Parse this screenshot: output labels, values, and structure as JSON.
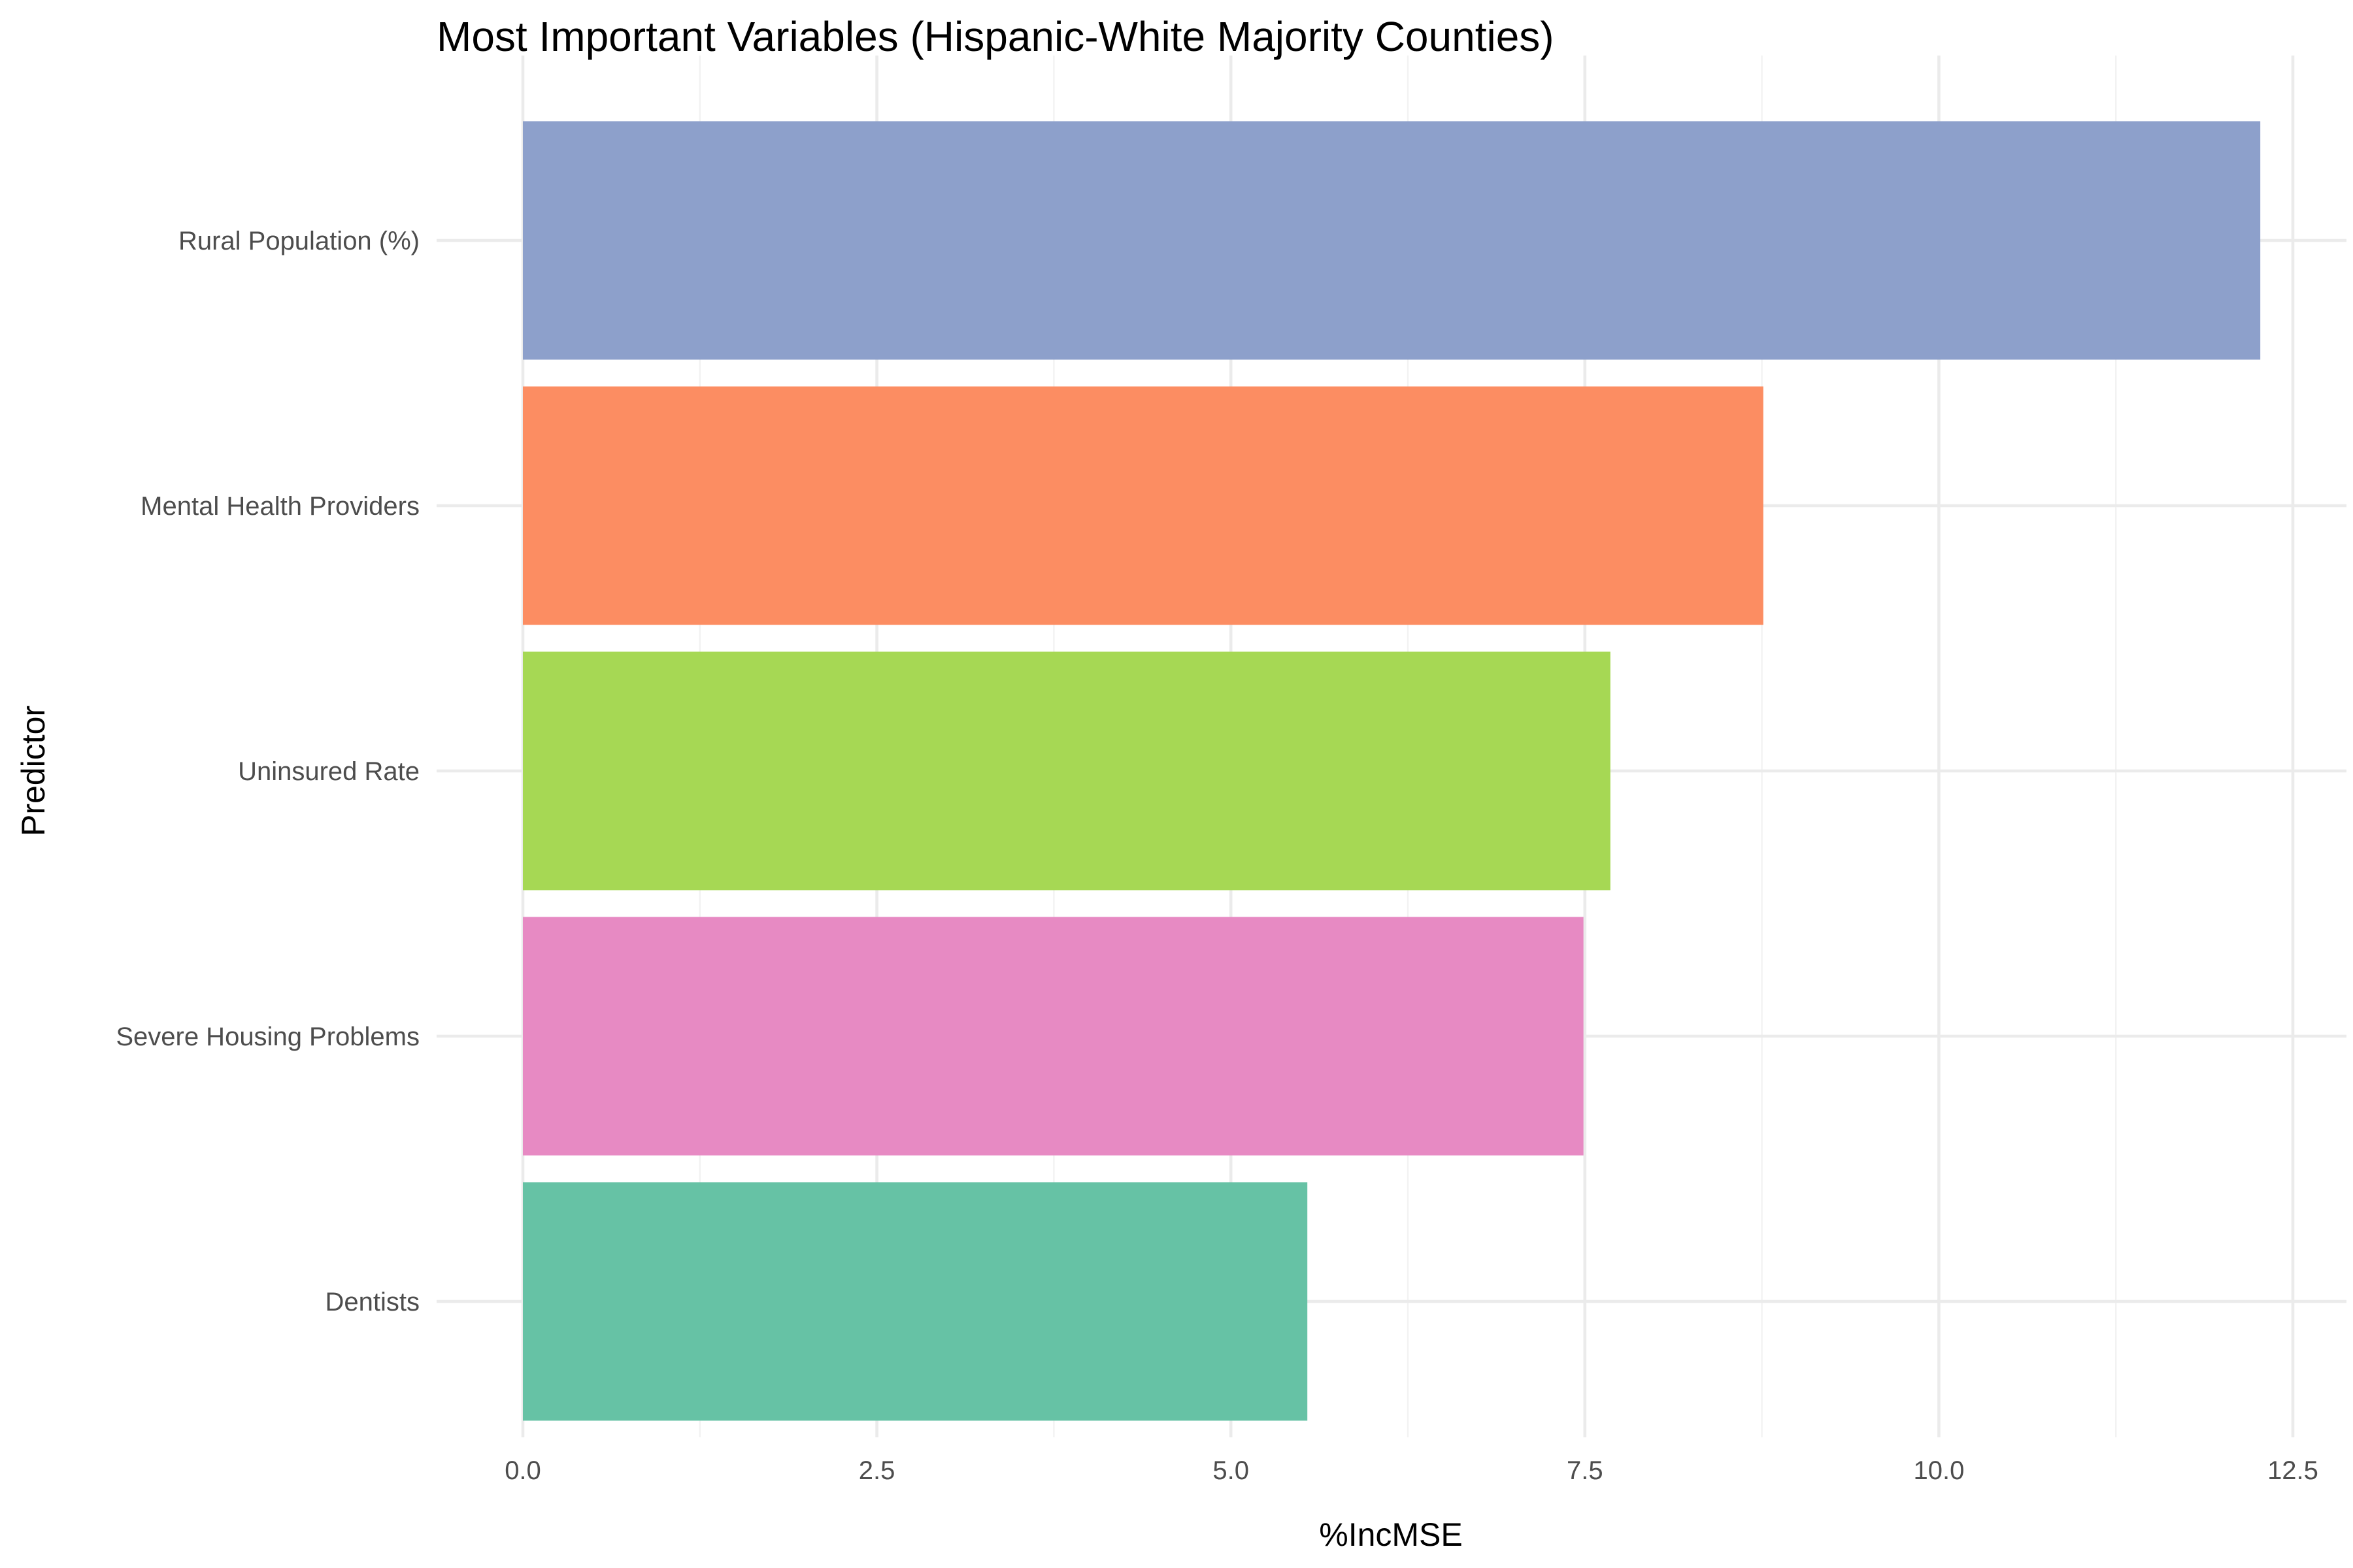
{
  "chart_data": {
    "type": "bar",
    "orientation": "horizontal",
    "title": "Most Important Variables (Hispanic-White Majority Counties)",
    "xlabel": "%IncMSE",
    "ylabel": "Predictor",
    "xlim": [
      0,
      12.8
    ],
    "xticks": [
      0,
      2.5,
      5,
      7.5,
      10,
      12.5
    ],
    "xtick_labels": [
      "0.0",
      "2.5",
      "5.0",
      "7.5",
      "10.0",
      "12.5"
    ],
    "grid": true,
    "legend": "none",
    "categories": [
      "Rural Population (%)",
      "Mental Health Providers",
      "Uninsured Rate",
      "Severe Housing Problems",
      "Dentists"
    ],
    "values": [
      12.27,
      8.76,
      7.68,
      7.49,
      5.54
    ],
    "colors": [
      "#8da0cb",
      "#fc8d62",
      "#a6d854",
      "#e78ac3",
      "#66c2a5"
    ]
  }
}
